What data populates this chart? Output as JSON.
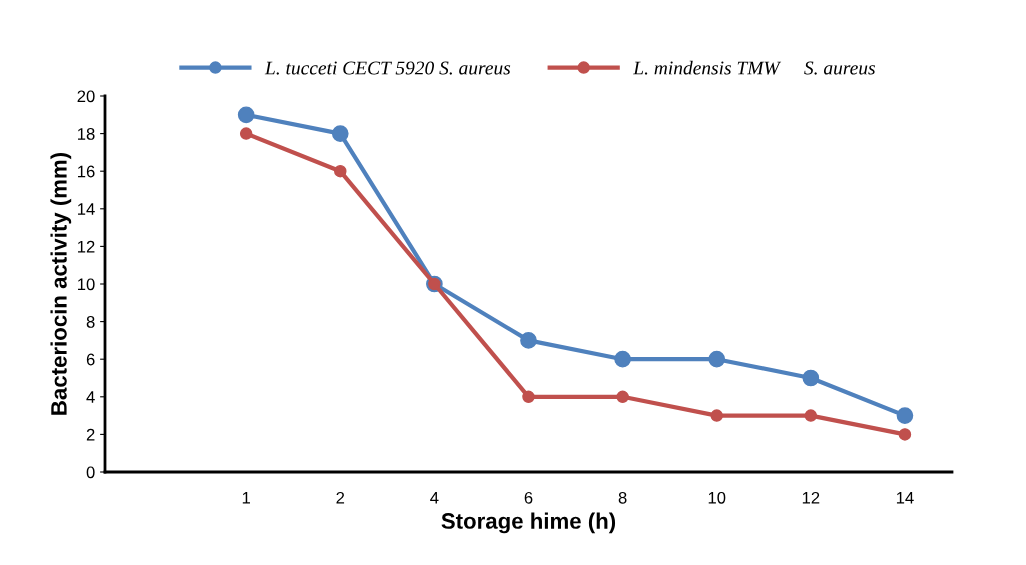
{
  "chart_data": {
    "type": "line",
    "xlabel": "Storage hime (h)",
    "ylabel": "Bacteriocin activity (mm)",
    "categories": [
      null,
      "1",
      "2",
      "4",
      "6",
      "8",
      "10",
      "12",
      "14"
    ],
    "series": [
      {
        "name": "L. tucceti CECT 5920 S. aureus",
        "color": "#4f81bd",
        "values": [
          null,
          19,
          18,
          10,
          7,
          6,
          6,
          5,
          3
        ]
      },
      {
        "name": "L. mindensis TMW     S. aureus",
        "color": "#c0504d",
        "values": [
          null,
          18,
          16,
          10,
          4,
          4,
          3,
          3,
          2
        ]
      }
    ],
    "ylim": [
      0,
      20
    ],
    "yticks": [
      0,
      2,
      4,
      6,
      8,
      10,
      12,
      14,
      16,
      18,
      20
    ],
    "grid": false,
    "legend": "top",
    "marker": "circle",
    "line_style": "solid"
  }
}
